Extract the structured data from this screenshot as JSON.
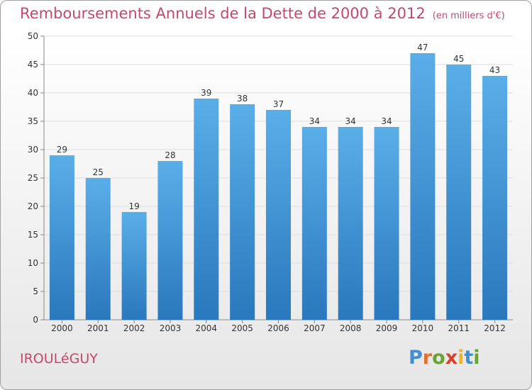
{
  "header": {
    "title": "Remboursements Annuels de la Dette de 2000 à 2012",
    "unit": "(en milliers d'€)"
  },
  "footer": {
    "commune": "IROULéGUY",
    "logo": "Proxiti"
  },
  "colors": {
    "bar_light": "#5aaee8",
    "bar_dark": "#2a78bd",
    "title": "#c8476c"
  },
  "chart_data": {
    "type": "bar",
    "title": "Remboursements Annuels de la Dette de 2000 à 2012",
    "subtitle": "(en milliers d'€)",
    "xlabel": "",
    "ylabel": "",
    "categories": [
      "2000",
      "2001",
      "2002",
      "2003",
      "2004",
      "2005",
      "2006",
      "2007",
      "2008",
      "2009",
      "2010",
      "2011",
      "2012"
    ],
    "values": [
      29,
      25,
      19,
      28,
      39,
      38,
      37,
      34,
      34,
      34,
      47,
      45,
      43
    ],
    "ylim": [
      0,
      50
    ],
    "yticks": [
      0,
      5,
      10,
      15,
      20,
      25,
      30,
      35,
      40,
      45,
      50
    ],
    "grid": true,
    "data_labels": true
  }
}
